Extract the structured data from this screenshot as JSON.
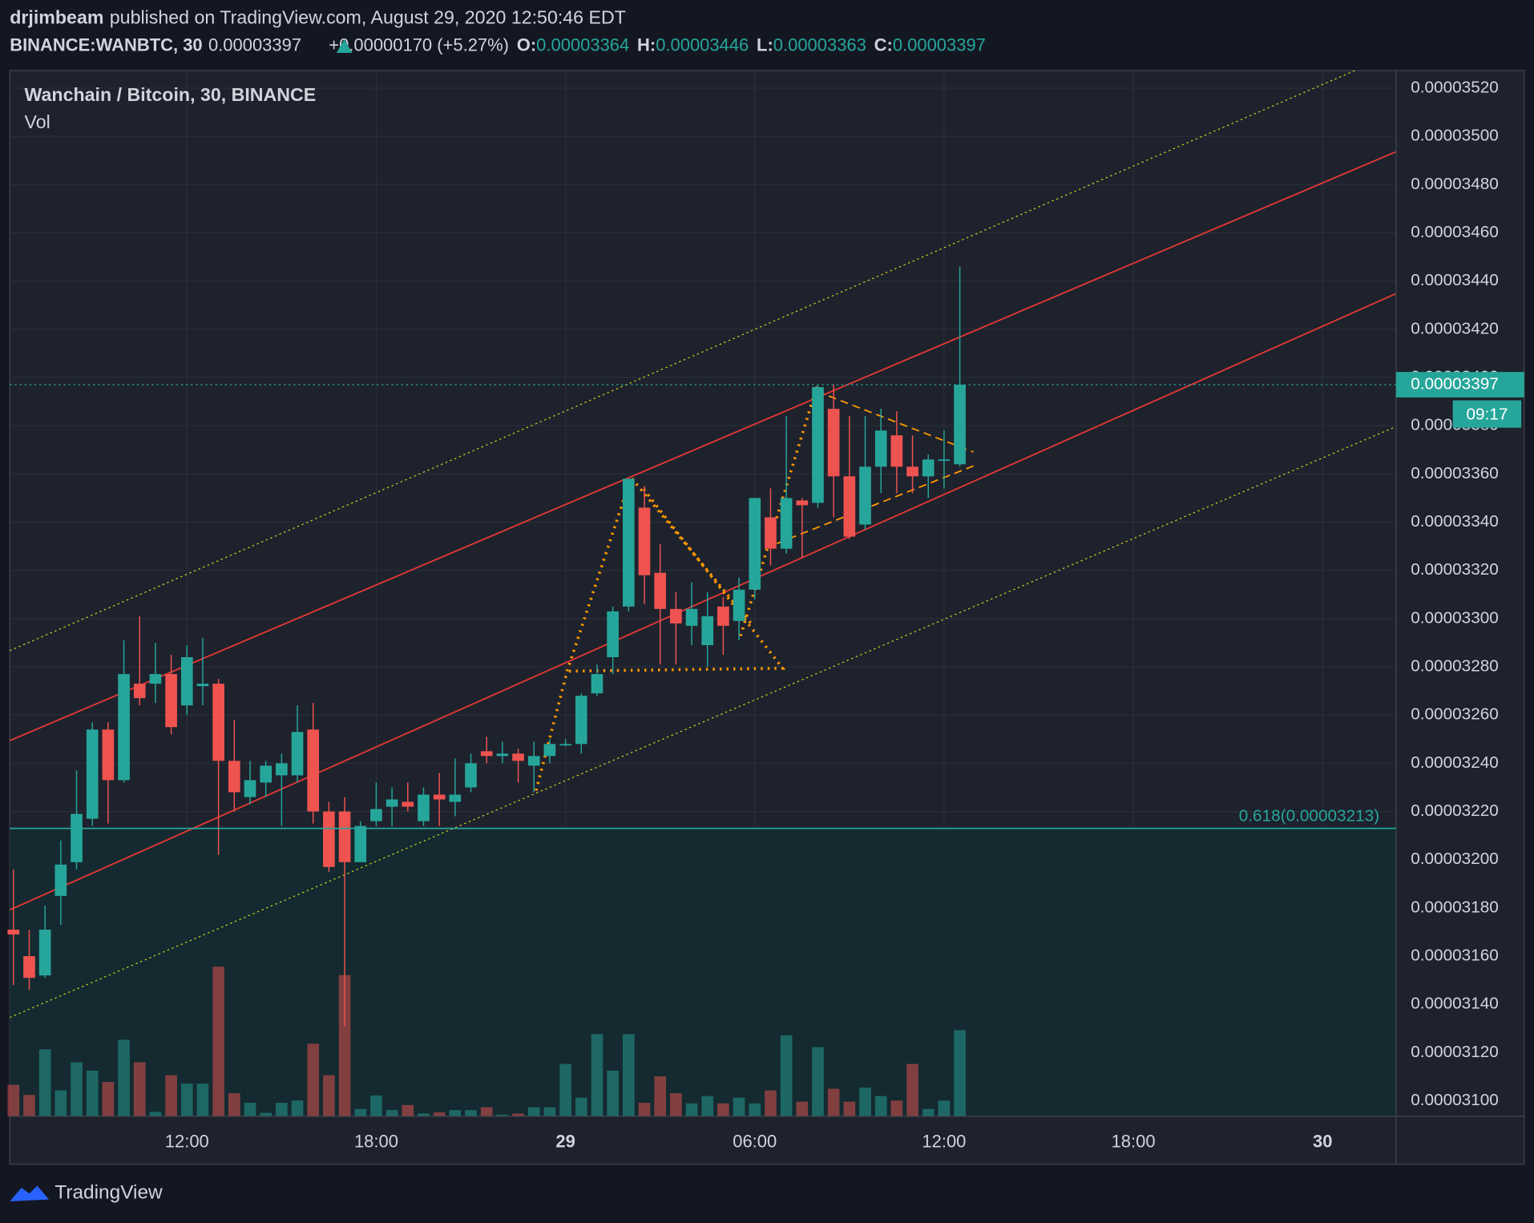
{
  "header": {
    "author": "drjimbeam",
    "published": "published on TradingView.com, August 29, 2020 12:50:46 EDT",
    "symbol": "BINANCE:WANBTC, 30",
    "last": "0.00003397",
    "change": "+0.00000170 (+5.27%)",
    "o_label": "O:",
    "o": "0.00003364",
    "h_label": "H:",
    "h": "0.00003446",
    "l_label": "L:",
    "l": "0.00003363",
    "c_label": "C:",
    "c": "0.00003397"
  },
  "chart_data": {
    "type": "candlestick",
    "title": "Wanchain / Bitcoin, 30, BINANCE",
    "volume_label": "Vol",
    "up_color": "#26a69a",
    "down_color": "#ef5350",
    "grid": true,
    "x": [
      "28 06:30",
      "28 07:00",
      "28 07:30",
      "28 08:00",
      "28 08:30",
      "28 09:00",
      "28 09:30",
      "28 10:00",
      "28 10:30",
      "28 11:00",
      "28 11:30",
      "28 12:00",
      "28 12:30",
      "28 13:00",
      "28 13:30",
      "28 14:00",
      "28 14:30",
      "28 15:00",
      "28 15:30",
      "28 16:00",
      "28 16:30",
      "28 17:00",
      "28 17:30",
      "28 18:00",
      "28 18:30",
      "28 19:00",
      "28 19:30",
      "28 20:00",
      "28 20:30",
      "28 21:00",
      "28 21:30",
      "28 22:00",
      "28 22:30",
      "28 23:00",
      "28 23:30",
      "29 00:00",
      "29 00:30",
      "29 01:00",
      "29 01:30",
      "29 02:00",
      "29 02:30",
      "29 03:00",
      "29 03:30",
      "29 04:00",
      "29 04:30",
      "29 05:00",
      "29 05:30",
      "29 06:00",
      "29 06:30",
      "29 07:00",
      "29 07:30",
      "29 08:00",
      "29 08:30",
      "29 09:00",
      "29 09:30",
      "29 10:00",
      "29 10:30",
      "29 11:00",
      "29 11:30",
      "29 12:00",
      "29 12:30"
    ],
    "open": [
      3.171e-05,
      3.16e-05,
      3.152e-05,
      3.185e-05,
      3.199e-05,
      3.217e-05,
      3.254e-05,
      3.233e-05,
      3.273e-05,
      3.273e-05,
      3.277e-05,
      3.264e-05,
      3.272e-05,
      3.273e-05,
      3.241e-05,
      3.226e-05,
      3.232e-05,
      3.235e-05,
      3.235e-05,
      3.254e-05,
      3.22e-05,
      3.22e-05,
      3.199e-05,
      3.216e-05,
      3.222e-05,
      3.224e-05,
      3.216e-05,
      3.227e-05,
      3.224e-05,
      3.23e-05,
      3.245e-05,
      3.243e-05,
      3.244e-05,
      3.239e-05,
      3.243e-05,
      3.248e-05,
      3.248e-05,
      3.269e-05,
      3.284e-05,
      3.305e-05,
      3.346e-05,
      3.319e-05,
      3.304e-05,
      3.297e-05,
      3.289e-05,
      3.305e-05,
      3.299e-05,
      3.312e-05,
      3.342e-05,
      3.329e-05,
      3.349e-05,
      3.348e-05,
      3.387e-05,
      3.359e-05,
      3.339e-05,
      3.363e-05,
      3.376e-05,
      3.363e-05,
      3.359e-05,
      3.366e-05,
      3.364e-05
    ],
    "high": [
      3.196e-05,
      3.171e-05,
      3.181e-05,
      3.208e-05,
      3.237e-05,
      3.257e-05,
      3.257e-05,
      3.291e-05,
      3.301e-05,
      3.29e-05,
      3.285e-05,
      3.289e-05,
      3.292e-05,
      3.275e-05,
      3.258e-05,
      3.241e-05,
      3.241e-05,
      3.244e-05,
      3.264e-05,
      3.265e-05,
      3.224e-05,
      3.226e-05,
      3.216e-05,
      3.232e-05,
      3.23e-05,
      3.232e-05,
      3.23e-05,
      3.236e-05,
      3.242e-05,
      3.244e-05,
      3.251e-05,
      3.249e-05,
      3.246e-05,
      3.249e-05,
      3.25e-05,
      3.25e-05,
      3.269e-05,
      3.281e-05,
      3.305e-05,
      3.358e-05,
      3.355e-05,
      3.331e-05,
      3.311e-05,
      3.315e-05,
      3.311e-05,
      3.309e-05,
      3.317e-05,
      3.35e-05,
      3.354e-05,
      3.384e-05,
      3.35e-05,
      3.397e-05,
      3.397e-05,
      3.384e-05,
      3.384e-05,
      3.387e-05,
      3.386e-05,
      3.376e-05,
      3.368e-05,
      3.378e-05,
      3.446e-05
    ],
    "low": [
      3.148e-05,
      3.146e-05,
      3.151e-05,
      3.173e-05,
      3.196e-05,
      3.214e-05,
      3.215e-05,
      3.232e-05,
      3.264e-05,
      3.265e-05,
      3.252e-05,
      3.26e-05,
      3.264e-05,
      3.202e-05,
      3.22e-05,
      3.223e-05,
      3.226e-05,
      3.214e-05,
      3.232e-05,
      3.215e-05,
      3.195e-05,
      3.131e-05,
      3.199e-05,
      3.214e-05,
      3.214e-05,
      3.22e-05,
      3.214e-05,
      3.214e-05,
      3.218e-05,
      3.228e-05,
      3.24e-05,
      3.24e-05,
      3.232e-05,
      3.228e-05,
      3.24e-05,
      3.247e-05,
      3.244e-05,
      3.268e-05,
      3.277e-05,
      3.303e-05,
      3.306e-05,
      3.281e-05,
      3.281e-05,
      3.289e-05,
      3.28e-05,
      3.285e-05,
      3.291e-05,
      3.308e-05,
      3.322e-05,
      3.327e-05,
      3.325e-05,
      3.346e-05,
      3.342e-05,
      3.333e-05,
      3.337e-05,
      3.352e-05,
      3.352e-05,
      3.352e-05,
      3.35e-05,
      3.354e-05,
      3.363e-05
    ],
    "close": [
      3.169e-05,
      3.151e-05,
      3.171e-05,
      3.198e-05,
      3.219e-05,
      3.254e-05,
      3.233e-05,
      3.277e-05,
      3.267e-05,
      3.277e-05,
      3.255e-05,
      3.284e-05,
      3.273e-05,
      3.241e-05,
      3.228e-05,
      3.233e-05,
      3.239e-05,
      3.24e-05,
      3.253e-05,
      3.22e-05,
      3.197e-05,
      3.199e-05,
      3.214e-05,
      3.221e-05,
      3.225e-05,
      3.222e-05,
      3.227e-05,
      3.225e-05,
      3.227e-05,
      3.24e-05,
      3.243e-05,
      3.244e-05,
      3.241e-05,
      3.243e-05,
      3.248e-05,
      3.248e-05,
      3.268e-05,
      3.277e-05,
      3.303e-05,
      3.358e-05,
      3.318e-05,
      3.304e-05,
      3.298e-05,
      3.304e-05,
      3.301e-05,
      3.297e-05,
      3.312e-05,
      3.35e-05,
      3.329e-05,
      3.35e-05,
      3.347e-05,
      3.396e-05,
      3.359e-05,
      3.334e-05,
      3.363e-05,
      3.378e-05,
      3.363e-05,
      3.359e-05,
      3.366e-05,
      3.366e-05,
      3.397e-05
    ],
    "volume": [
      56,
      38,
      119,
      46,
      96,
      81,
      61,
      136,
      96,
      8,
      73,
      58,
      58,
      266,
      41,
      24,
      6,
      24,
      28,
      129,
      73,
      251,
      13,
      37,
      11,
      20,
      5,
      7,
      11,
      11,
      16,
      3,
      5,
      16,
      16,
      93,
      33,
      146,
      81,
      146,
      24,
      71,
      41,
      23,
      36,
      23,
      33,
      23,
      46,
      144,
      26,
      123,
      49,
      26,
      51,
      36,
      28,
      93,
      13,
      28,
      153
    ],
    "xlim": [
      "28 06:23",
      "30 02:16"
    ],
    "xticks": [
      {
        "value": "28 12:00",
        "label": "12:00"
      },
      {
        "value": "28 18:00",
        "label": "18:00"
      },
      {
        "value": "29 00:00",
        "label": "29"
      },
      {
        "value": "29 06:00",
        "label": "06:00"
      },
      {
        "value": "29 12:00",
        "label": "12:00"
      },
      {
        "value": "29 18:00",
        "label": "18:00"
      },
      {
        "value": "30 00:00",
        "label": "30"
      }
    ],
    "ylim": [
      3.0936e-05,
      3.5273e-05
    ],
    "yticks": [
      {
        "value": 3.1e-05,
        "label": "0.00003100"
      },
      {
        "value": 3.12e-05,
        "label": "0.00003120"
      },
      {
        "value": 3.14e-05,
        "label": "0.00003140"
      },
      {
        "value": 3.16e-05,
        "label": "0.00003160"
      },
      {
        "value": 3.18e-05,
        "label": "0.00003180"
      },
      {
        "value": 3.2e-05,
        "label": "0.00003200"
      },
      {
        "value": 3.22e-05,
        "label": "0.00003220"
      },
      {
        "value": 3.24e-05,
        "label": "0.00003240"
      },
      {
        "value": 3.26e-05,
        "label": "0.00003260"
      },
      {
        "value": 3.28e-05,
        "label": "0.00003280"
      },
      {
        "value": 3.3e-05,
        "label": "0.00003300"
      },
      {
        "value": 3.32e-05,
        "label": "0.00003320"
      },
      {
        "value": 3.34e-05,
        "label": "0.00003340"
      },
      {
        "value": 3.36e-05,
        "label": "0.00003360"
      },
      {
        "value": 3.38e-05,
        "label": "0.00003380"
      },
      {
        "value": 3.4e-05,
        "label": "0.00003400"
      },
      {
        "value": 3.42e-05,
        "label": "0.00003420"
      },
      {
        "value": 3.44e-05,
        "label": "0.00003440"
      },
      {
        "value": 3.46e-05,
        "label": "0.00003460"
      },
      {
        "value": 3.48e-05,
        "label": "0.00003480"
      },
      {
        "value": 3.5e-05,
        "label": "0.00003500"
      },
      {
        "value": 3.52e-05,
        "label": "0.00003520"
      }
    ],
    "fib_level": 3.213e-05,
    "fib_label": "0.618(0.00003213)",
    "countdown": "09:17"
  },
  "footer": {
    "brand": "TradingView"
  }
}
